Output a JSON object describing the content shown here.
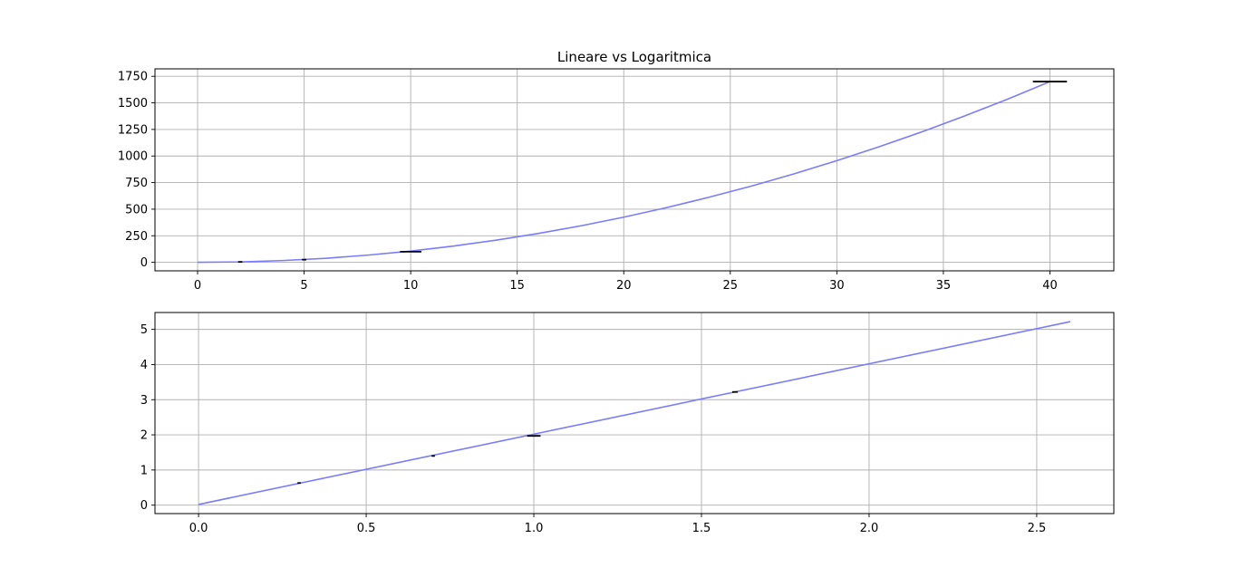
{
  "colors": {
    "line": "#7b7bff",
    "errorbar": "#000000",
    "grid": "#b0b0b0",
    "axes": "#000000",
    "background": "#ffffff"
  },
  "chart_data": [
    {
      "type": "line",
      "title": "Lineare vs Logaritmica",
      "xlabel": "",
      "ylabel": "",
      "xlim": [
        -2,
        43
      ],
      "ylim": [
        -80,
        1820
      ],
      "xticks": [
        0,
        5,
        10,
        15,
        20,
        25,
        30,
        35,
        40
      ],
      "yticks": [
        0,
        250,
        500,
        750,
        1000,
        1250,
        1500,
        1750
      ],
      "grid": true,
      "series": [
        {
          "curve": "x^2 (approx. 1.06·x^2)",
          "x": [
            0,
            2,
            4,
            6,
            8,
            10,
            12,
            14,
            16,
            18,
            20,
            22,
            24,
            26,
            28,
            30,
            32,
            34,
            36,
            38,
            40
          ],
          "y": [
            0,
            4,
            17,
            38,
            68,
            106,
            153,
            208,
            272,
            344,
            425,
            514,
            612,
            718,
            833,
            956,
            1088,
            1228,
            1377,
            1534,
            1700
          ]
        }
      ],
      "errorbars": [
        {
          "x": 2,
          "y": 4,
          "xerr": 0.1
        },
        {
          "x": 5,
          "y": 25,
          "xerr": 0.1
        },
        {
          "x": 10,
          "y": 100,
          "xerr": 0.5
        },
        {
          "x": 40,
          "y": 1700,
          "xerr": 0.8
        }
      ]
    },
    {
      "type": "line",
      "title": "",
      "xlabel": "",
      "ylabel": "",
      "xlim": [
        -0.13,
        2.73
      ],
      "ylim": [
        -0.24,
        5.48
      ],
      "xticks": [
        0.0,
        0.5,
        1.0,
        1.5,
        2.0,
        2.5
      ],
      "xticklabels": [
        "0.0",
        "0.5",
        "1.0",
        "1.5",
        "2.0",
        "2.5"
      ],
      "yticks": [
        0,
        1,
        2,
        3,
        4,
        5
      ],
      "grid": true,
      "series": [
        {
          "x": [
            0.0,
            2.6
          ],
          "y": [
            0.02,
            5.22
          ]
        }
      ],
      "errorbars": [
        {
          "x": 0.3,
          "y": 0.63,
          "xerr": 0.005
        },
        {
          "x": 0.7,
          "y": 1.4,
          "xerr": 0.005
        },
        {
          "x": 1.0,
          "y": 1.97,
          "xerr": 0.02
        },
        {
          "x": 1.6,
          "y": 3.22,
          "xerr": 0.008
        }
      ]
    }
  ]
}
